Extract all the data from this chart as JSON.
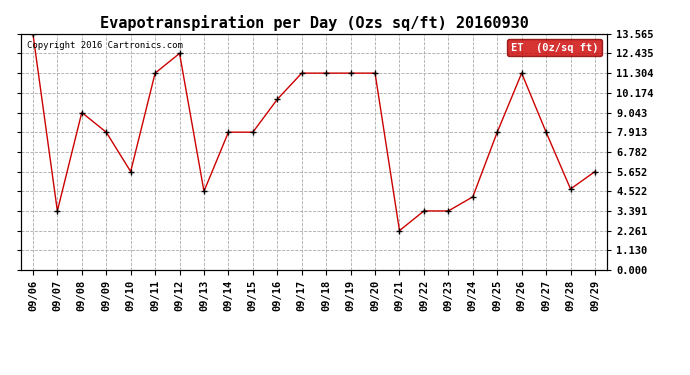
{
  "title": "Evapotranspiration per Day (Ozs sq/ft) 20160930",
  "copyright_text": "Copyright 2016 Cartronics.com",
  "legend_label": "ET  (0z/sq ft)",
  "dates": [
    "09/06",
    "09/07",
    "09/08",
    "09/09",
    "09/10",
    "09/11",
    "09/12",
    "09/13",
    "09/14",
    "09/15",
    "09/16",
    "09/17",
    "09/18",
    "09/19",
    "09/20",
    "09/21",
    "09/22",
    "09/23",
    "09/24",
    "09/25",
    "09/26",
    "09/27",
    "09/28",
    "09/29"
  ],
  "values": [
    13.565,
    3.391,
    9.043,
    7.913,
    5.652,
    11.304,
    12.435,
    4.522,
    7.913,
    7.913,
    9.8,
    11.304,
    11.304,
    11.304,
    11.304,
    2.261,
    3.391,
    3.391,
    4.2,
    7.913,
    11.304,
    7.913,
    4.652,
    5.652
  ],
  "yticks": [
    0.0,
    1.13,
    2.261,
    3.391,
    4.522,
    5.652,
    6.782,
    7.913,
    9.043,
    10.174,
    11.304,
    12.435,
    13.565
  ],
  "ylim": [
    0.0,
    13.565
  ],
  "line_color": "#cc0000",
  "marker_color": "#000000",
  "bg_color": "#ffffff",
  "grid_color": "#aaaaaa",
  "title_fontsize": 11,
  "tick_fontsize": 7.5,
  "legend_bg": "#cc0000",
  "legend_fg": "#ffffff"
}
